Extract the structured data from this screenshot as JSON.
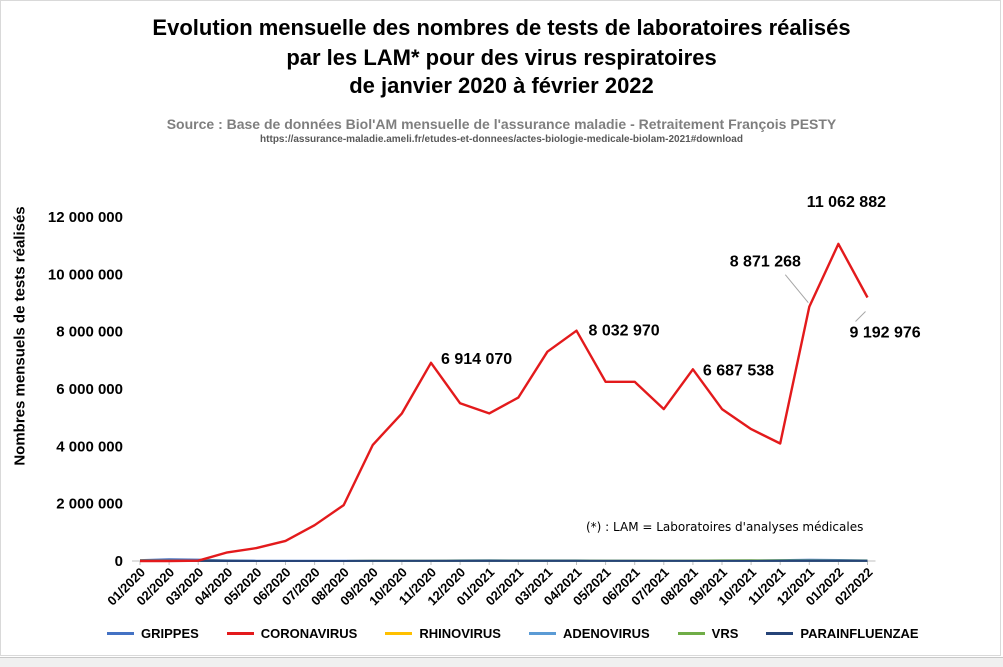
{
  "title_lines": [
    "Evolution mensuelle des nombres de tests de laboratoires réalisés",
    "par les LAM* pour des virus respiratoires",
    "de janvier 2020 à février 2022"
  ],
  "source": "Source : Base de données Biol'AM mensuelle de l'assurance maladie - Retraitement François PESTY",
  "url": "https://assurance-maladie.ameli.fr/etudes-et-donnees/actes-biologie-medicale-biolam-2021#download",
  "note": "(*) : LAM = Laboratoires d'analyses médicales",
  "chart_data": {
    "type": "line",
    "ylabel": "Nombres mensuels de tests réalisés",
    "ylim": [
      0,
      12000000
    ],
    "y_ticks": [
      0,
      2000000,
      4000000,
      6000000,
      8000000,
      10000000,
      12000000
    ],
    "y_tick_labels": [
      "0",
      "2 000 000",
      "4 000 000",
      "6 000 000",
      "8 000 000",
      "10 000 000",
      "12 000 000"
    ],
    "categories": [
      "01/2020",
      "02/2020",
      "03/2020",
      "04/2020",
      "05/2020",
      "06/2020",
      "07/2020",
      "08/2020",
      "09/2020",
      "10/2020",
      "11/2020",
      "12/2020",
      "01/2021",
      "02/2021",
      "03/2021",
      "04/2021",
      "05/2021",
      "06/2021",
      "07/2021",
      "08/2021",
      "09/2021",
      "10/2021",
      "11/2021",
      "12/2021",
      "01/2022",
      "02/2022"
    ],
    "grid": false,
    "legend_position": "bottom",
    "series": [
      {
        "name": "GRIPPES",
        "color": "#4472c4",
        "values": [
          30000,
          60000,
          50000,
          20000,
          10000,
          10000,
          10000,
          10000,
          10000,
          10000,
          15000,
          20000,
          25000,
          20000,
          20000,
          20000,
          15000,
          15000,
          10000,
          10000,
          10000,
          15000,
          30000,
          45000,
          35000,
          20000
        ]
      },
      {
        "name": "CORONAVIRUS",
        "color": "#e31a1c",
        "values": [
          0,
          0,
          10000,
          300000,
          450000,
          700000,
          1250000,
          1950000,
          4050000,
          5150000,
          6914070,
          5500000,
          5150000,
          5700000,
          7300000,
          8032970,
          6250000,
          6250000,
          5300000,
          6687538,
          5300000,
          4600000,
          4100000,
          8871268,
          11062882,
          9192976
        ]
      },
      {
        "name": "RHINOVIRUS",
        "color": "#ffc000",
        "values": [
          5000,
          5000,
          3000,
          1000,
          1000,
          1000,
          1000,
          1000,
          3000,
          4000,
          4000,
          4000,
          4000,
          4000,
          4000,
          4000,
          4000,
          4000,
          3000,
          3000,
          3000,
          4000,
          4000,
          4000,
          4000,
          4000
        ]
      },
      {
        "name": "ADENOVIRUS",
        "color": "#5b9bd5",
        "values": [
          4000,
          4000,
          3000,
          1000,
          1000,
          1000,
          1000,
          1000,
          2000,
          3000,
          3000,
          3000,
          3000,
          3000,
          3000,
          3000,
          3000,
          3000,
          3000,
          3000,
          3000,
          3000,
          3000,
          3000,
          3000,
          3000
        ]
      },
      {
        "name": "VRS",
        "color": "#70ad47",
        "values": [
          20000,
          15000,
          10000,
          2000,
          1000,
          1000,
          1000,
          1000,
          2000,
          3000,
          5000,
          8000,
          8000,
          8000,
          8000,
          8000,
          8000,
          10000,
          10000,
          15000,
          20000,
          25000,
          20000,
          15000,
          10000,
          8000
        ]
      },
      {
        "name": "PARAINFLUENZAE",
        "color": "#264478",
        "values": [
          3000,
          3000,
          2000,
          1000,
          1000,
          1000,
          1000,
          1000,
          2000,
          2000,
          2000,
          2000,
          2000,
          2000,
          2000,
          2000,
          2000,
          2000,
          2000,
          2000,
          2000,
          2000,
          2000,
          2000,
          2000,
          2000
        ]
      }
    ],
    "data_labels": [
      {
        "series": "CORONAVIRUS",
        "index": 10,
        "text": "6 914 070"
      },
      {
        "series": "CORONAVIRUS",
        "index": 15,
        "text": "8 032 970"
      },
      {
        "series": "CORONAVIRUS",
        "index": 19,
        "text": "6 687 538"
      },
      {
        "series": "CORONAVIRUS",
        "index": 23,
        "text": "8 871 268"
      },
      {
        "series": "CORONAVIRUS",
        "index": 24,
        "text": "11 062 882"
      },
      {
        "series": "CORONAVIRUS",
        "index": 25,
        "text": "9 192 976"
      }
    ]
  }
}
